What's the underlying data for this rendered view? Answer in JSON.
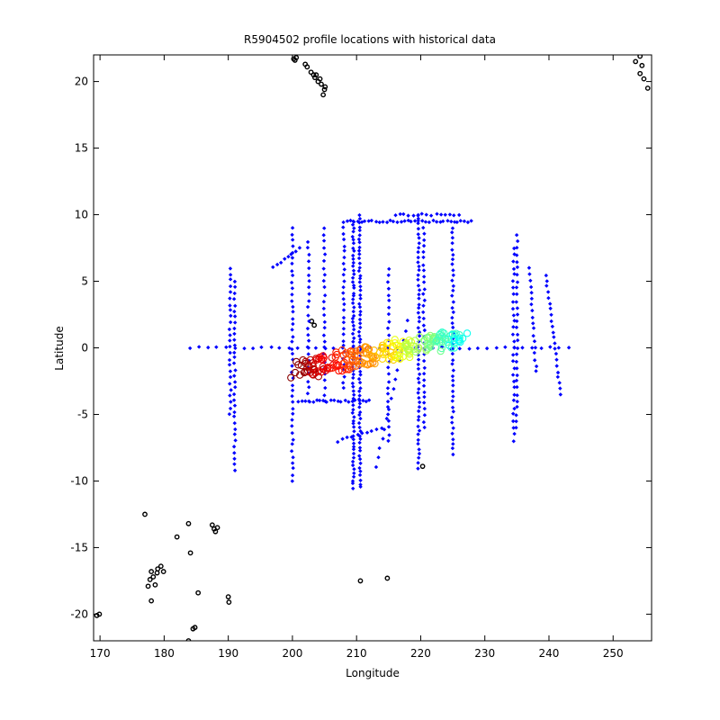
{
  "chart_data": {
    "type": "scatter",
    "title": "R5904502 profile locations with historical data",
    "xlabel": "Longitude",
    "ylabel": "Latitude",
    "xlim": [
      169,
      256
    ],
    "ylim": [
      -22,
      22
    ],
    "xticks": [
      170,
      180,
      190,
      200,
      210,
      220,
      230,
      240,
      250
    ],
    "yticks": [
      -20,
      -15,
      -10,
      -5,
      0,
      5,
      10,
      15,
      20
    ],
    "grid": false,
    "series": [
      {
        "kind": "historical",
        "color": "#0000ff",
        "marker": "diamond",
        "tracks": [
          {
            "x": [
              184,
              243
            ],
            "y": [
              0,
              0
            ],
            "step": 1.4
          },
          {
            "x": [
              190.3,
              190.3
            ],
            "y": [
              -5,
              6
            ],
            "step": 0.45
          },
          {
            "x": [
              191,
              191
            ],
            "y": [
              -9.2,
              5
            ],
            "step": 0.45
          },
          {
            "x": [
              200,
              200
            ],
            "y": [
              -10,
              9
            ],
            "step": 0.45
          },
          {
            "x": [
              202.5,
              202.5
            ],
            "y": [
              -4,
              8
            ],
            "step": 0.5
          },
          {
            "x": [
              205,
              205
            ],
            "y": [
              -4,
              9
            ],
            "step": 0.5
          },
          {
            "x": [
              208,
              208
            ],
            "y": [
              -3,
              9
            ],
            "step": 0.45
          },
          {
            "x": [
              209.5,
              209.5
            ],
            "y": [
              -10.5,
              9.5
            ],
            "step": 0.28
          },
          {
            "x": [
              210.5,
              210.5
            ],
            "y": [
              -10.5,
              10
            ],
            "step": 0.3
          },
          {
            "x": [
              215,
              215
            ],
            "y": [
              -7,
              6
            ],
            "step": 0.5
          },
          {
            "x": [
              219.7,
              219.7
            ],
            "y": [
              -9,
              10
            ],
            "step": 0.35
          },
          {
            "x": [
              220.5,
              220.5
            ],
            "y": [
              -6,
              9
            ],
            "step": 0.45
          },
          {
            "x": [
              225,
              225
            ],
            "y": [
              -8,
              9
            ],
            "step": 0.4
          },
          {
            "x": [
              235,
              235
            ],
            "y": [
              -6,
              8.5
            ],
            "step": 0.5
          },
          {
            "x": [
              234.5,
              234.5
            ],
            "y": [
              -7,
              7.5
            ],
            "step": 0.5
          },
          {
            "x": [
              208,
              228
            ],
            "y": [
              9.5,
              9.5
            ],
            "step": 0.55
          },
          {
            "x": [
              216,
              226
            ],
            "y": [
              10,
              10
            ],
            "step": 0.7
          },
          {
            "x": [
              201,
              212
            ],
            "y": [
              -4,
              -4
            ],
            "step": 0.55
          },
          {
            "x": [
              237,
              238
            ],
            "y": [
              6,
              -1.8
            ],
            "step": 0.45
          },
          {
            "x": [
              239.5,
              241.8
            ],
            "y": [
              5.5,
              -3.5
            ],
            "step": 0.45
          },
          {
            "x": [
              197,
              201
            ],
            "y": [
              6,
              7.5
            ],
            "step": 0.6
          },
          {
            "x": [
              207,
              214
            ],
            "y": [
              -7,
              -6
            ],
            "step": 0.8
          },
          {
            "x": [
              213,
              218
            ],
            "y": [
              -9,
              2
            ],
            "step": 0.8
          }
        ]
      },
      {
        "kind": "profile",
        "colormap": "jet",
        "marker": "circle",
        "start": [
          201,
          -1.6
        ],
        "end": [
          226.5,
          0.8
        ],
        "count": 220,
        "note_values": "colour runs dark red (early profiles, west) through orange, yellow, green to cyan (late profiles, east)"
      }
    ],
    "coastline": {
      "color": "#000000",
      "points": [
        [
          200.2,
          21.7
        ],
        [
          200.6,
          21.8
        ],
        [
          200.4,
          21.6
        ],
        [
          202.0,
          21.3
        ],
        [
          202.3,
          21.1
        ],
        [
          202.9,
          20.7
        ],
        [
          203.3,
          20.5
        ],
        [
          203.5,
          20.3
        ],
        [
          204.0,
          20.0
        ],
        [
          204.5,
          19.8
        ],
        [
          205.0,
          19.4
        ],
        [
          204.8,
          19.0
        ],
        [
          205.1,
          19.6
        ],
        [
          203.7,
          20.5
        ],
        [
          204.3,
          20.2
        ],
        [
          253.5,
          21.5
        ],
        [
          254.2,
          21.9
        ],
        [
          254.5,
          21.2
        ],
        [
          254.2,
          20.6
        ],
        [
          254.8,
          20.2
        ],
        [
          255.4,
          19.5
        ],
        [
          203.0,
          2.0
        ],
        [
          203.4,
          1.7
        ],
        [
          177.0,
          -12.5
        ],
        [
          178.0,
          -16.8
        ],
        [
          178.3,
          -17.2
        ],
        [
          178.6,
          -17.8
        ],
        [
          177.5,
          -17.9
        ],
        [
          177.8,
          -17.4
        ],
        [
          179.0,
          -16.6
        ],
        [
          179.5,
          -16.4
        ],
        [
          179.9,
          -16.8
        ],
        [
          178.9,
          -16.9
        ],
        [
          178.0,
          -19.0
        ],
        [
          182.0,
          -14.2
        ],
        [
          183.8,
          -13.2
        ],
        [
          184.1,
          -15.4
        ],
        [
          185.3,
          -18.4
        ],
        [
          184.8,
          -21.0
        ],
        [
          184.5,
          -21.1
        ],
        [
          183.8,
          -22.0
        ],
        [
          187.5,
          -13.3
        ],
        [
          188.0,
          -13.8
        ],
        [
          188.3,
          -13.5
        ],
        [
          187.8,
          -13.6
        ],
        [
          190.0,
          -18.7
        ],
        [
          190.1,
          -19.1
        ],
        [
          169.5,
          -20.1
        ],
        [
          169.9,
          -20.0
        ],
        [
          210.6,
          -17.5
        ],
        [
          214.8,
          -17.3
        ],
        [
          220.3,
          -8.9
        ]
      ]
    }
  }
}
